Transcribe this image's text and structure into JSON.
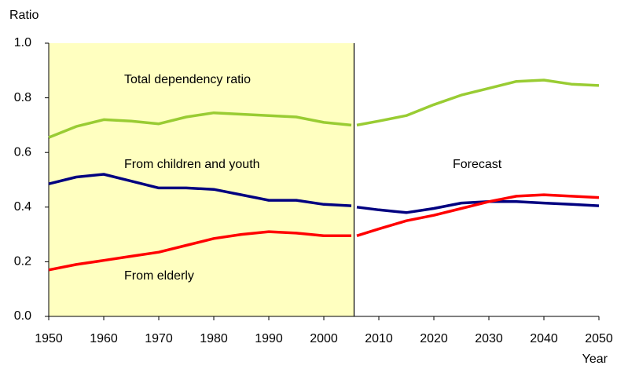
{
  "chart_data": {
    "type": "line",
    "ylabel": "Ratio",
    "xlabel": "Year",
    "x": [
      1950,
      1955,
      1960,
      1965,
      1970,
      1975,
      1980,
      1985,
      1990,
      1995,
      2000,
      2005,
      2005.5,
      2006,
      2010,
      2015,
      2020,
      2025,
      2030,
      2035,
      2040,
      2045,
      2050
    ],
    "series": [
      {
        "name": "Total dependency ratio",
        "color": "#99cc33",
        "values": [
          0.655,
          0.695,
          0.72,
          0.715,
          0.705,
          0.73,
          0.745,
          0.74,
          0.735,
          0.73,
          0.71,
          0.7,
          null,
          0.7,
          0.715,
          0.735,
          0.775,
          0.81,
          0.835,
          0.86,
          0.865,
          0.85,
          0.845
        ]
      },
      {
        "name": "From children and youth",
        "color": "#000080",
        "values": [
          0.485,
          0.51,
          0.52,
          0.495,
          0.47,
          0.47,
          0.465,
          0.445,
          0.425,
          0.425,
          0.41,
          0.405,
          null,
          0.4,
          0.39,
          0.38,
          0.395,
          0.415,
          0.42,
          0.42,
          0.415,
          0.41,
          0.405
        ]
      },
      {
        "name": "From elderly",
        "color": "#ff0000",
        "values": [
          0.17,
          0.19,
          0.205,
          0.22,
          0.235,
          0.26,
          0.285,
          0.3,
          0.31,
          0.305,
          0.295,
          0.295,
          null,
          0.295,
          0.32,
          0.35,
          0.37,
          0.395,
          0.42,
          0.44,
          0.445,
          0.44,
          0.435
        ]
      }
    ],
    "annotations": [
      "Forecast"
    ],
    "forecast_start": 2005.5,
    "history_color": "#ffffc0",
    "xlim": [
      1950,
      2050
    ],
    "xticks": [
      1950,
      1960,
      1970,
      1980,
      1990,
      2000,
      2010,
      2020,
      2030,
      2040,
      2050
    ],
    "ylim": [
      0,
      1
    ],
    "yticks": [
      {
        "value": 0,
        "label": "0.0"
      },
      0.2,
      0.4,
      0.6,
      0.8,
      {
        "value": 1,
        "label": "1.0"
      }
    ]
  }
}
